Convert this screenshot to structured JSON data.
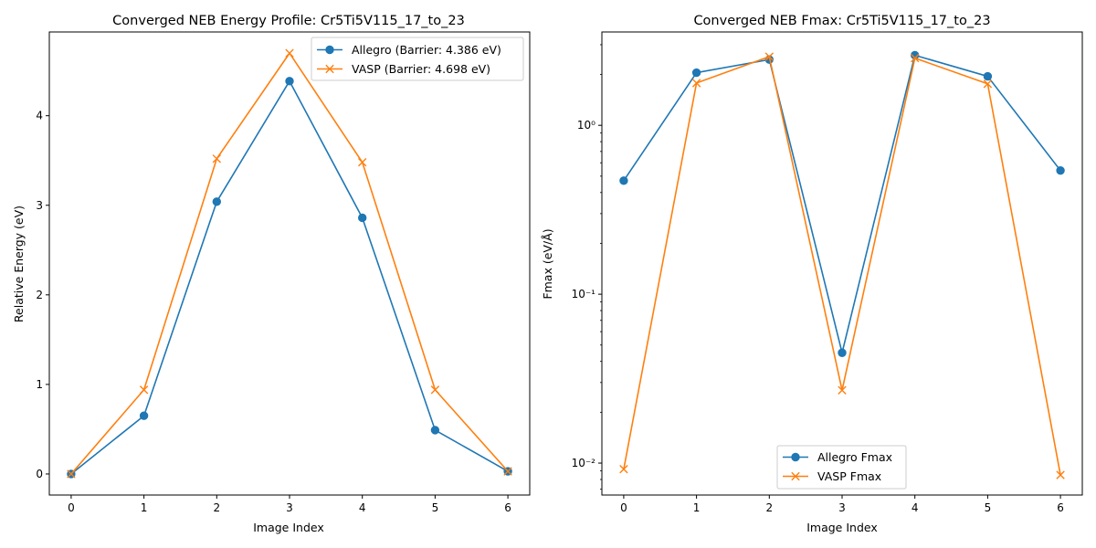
{
  "colors": {
    "allegro": "#1f77b4",
    "vasp": "#ff7f0e",
    "axis": "#000000",
    "legend_border": "#cccccc"
  },
  "chart_data": [
    {
      "type": "line",
      "title": "Converged NEB Energy Profile: Cr5Ti5V115_17_to_23",
      "xlabel": "Image Index",
      "ylabel": "Relative Energy (eV)",
      "x": [
        0,
        1,
        2,
        3,
        4,
        5,
        6
      ],
      "xlim": [
        -0.3,
        6.3
      ],
      "ylim": [
        -0.235,
        4.935
      ],
      "yscale": "linear",
      "xticks": [
        "0",
        "1",
        "2",
        "3",
        "4",
        "5",
        "6"
      ],
      "yticks": [
        "0",
        "1",
        "2",
        "3",
        "4"
      ],
      "grid": false,
      "legend_position": "upper right",
      "series": [
        {
          "name": "Allegro (Barrier: 4.386 eV)",
          "marker": "circle",
          "values": [
            0.0,
            0.65,
            3.04,
            4.386,
            2.86,
            0.49,
            0.03
          ]
        },
        {
          "name": "VASP (Barrier: 4.698 eV)",
          "marker": "x",
          "values": [
            0.0,
            0.94,
            3.52,
            4.698,
            3.48,
            0.94,
            0.03
          ]
        }
      ]
    },
    {
      "type": "line",
      "title": "Converged NEB Fmax: Cr5Ti5V115_17_to_23",
      "xlabel": "Image Index",
      "ylabel": "Fmax (eV/Å)",
      "x": [
        0,
        1,
        2,
        3,
        4,
        5,
        6
      ],
      "xlim": [
        -0.3,
        6.3
      ],
      "ylim": [
        0.00647,
        3.57
      ],
      "yscale": "log",
      "xticks": [
        "0",
        "1",
        "2",
        "3",
        "4",
        "5",
        "6"
      ],
      "yticks": [
        "10⁻²",
        "10⁻¹",
        "10⁰"
      ],
      "grid": false,
      "legend_position": "lower center",
      "series": [
        {
          "name": "Allegro Fmax",
          "marker": "circle",
          "values": [
            0.47,
            2.05,
            2.45,
            0.045,
            2.6,
            1.95,
            0.54
          ]
        },
        {
          "name": "VASP Fmax",
          "marker": "x",
          "values": [
            0.0092,
            1.78,
            2.55,
            0.027,
            2.5,
            1.76,
            0.0085
          ]
        }
      ]
    }
  ]
}
